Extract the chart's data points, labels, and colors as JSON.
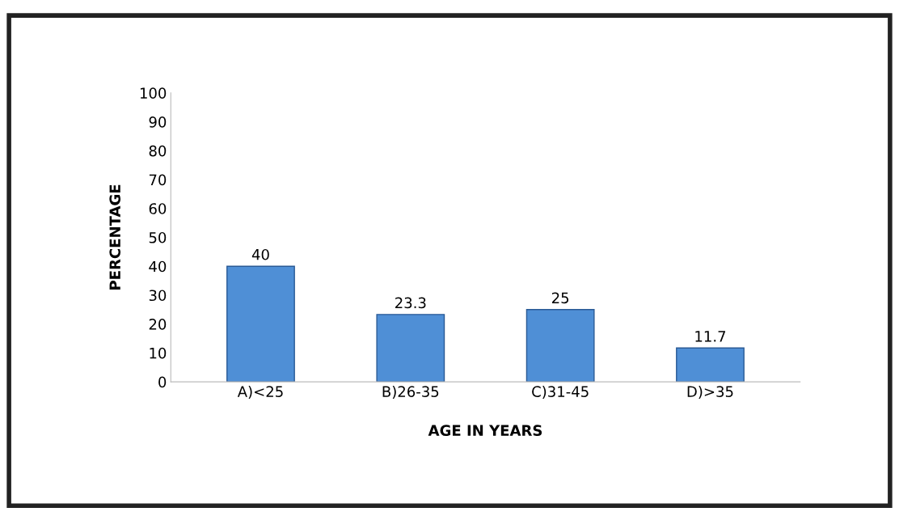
{
  "chart_data": {
    "type": "bar",
    "xlabel": "AGE IN YEARS",
    "ylabel": "PERCENTAGE",
    "categories": [
      "A)<25",
      "B)26-35",
      "C)31-45",
      "D)>35"
    ],
    "values": [
      40,
      23.3,
      25,
      11.7
    ],
    "color": "#4f8fd6",
    "ylim": [
      0,
      100
    ],
    "yticks": [
      0,
      10,
      20,
      30,
      40,
      50,
      60,
      70,
      80,
      90,
      100
    ],
    "data_labels": true,
    "grid": false
  }
}
